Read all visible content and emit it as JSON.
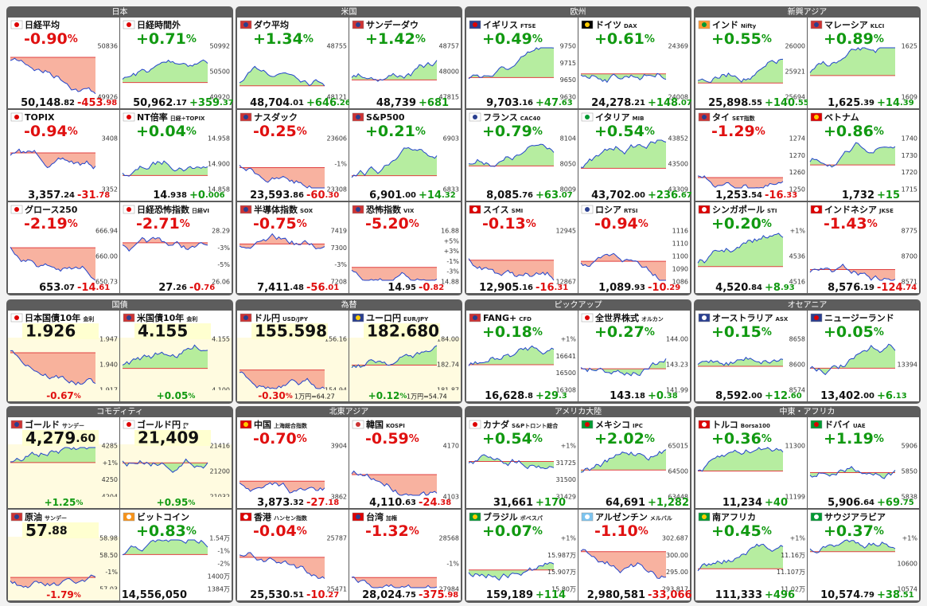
{
  "groups": [
    {
      "title": "日本",
      "tiles": [
        {
          "name": "日経平均",
          "pct": "-0.90%",
          "price": "50,148.82",
          "change": "-453.98",
          "labels": [
            "50836",
            "49926"
          ]
        },
        {
          "name": "日経時間外",
          "pct": "+0.71%",
          "price": "50,962.17",
          "change": "+359.37",
          "labels": [
            "50992",
            "50500",
            "49920"
          ]
        },
        {
          "name": "TOPIX",
          "pct": "-0.94%",
          "price": "3,357.24",
          "change": "-31.78",
          "labels": [
            "3408",
            "3352"
          ]
        },
        {
          "name": "NT倍率",
          "sub": "日経÷TOPIX",
          "pct": "+0.04%",
          "price": "14.938",
          "change": "+0.006",
          "labels": [
            "14.958",
            "14.900",
            "14.858"
          ]
        },
        {
          "name": "グロース250",
          "pct": "-2.19%",
          "price": "653.07",
          "change": "-14.61",
          "labels": [
            "666.94",
            "660.00",
            "650.73"
          ]
        },
        {
          "name": "日経恐怖指数",
          "sub": "日経VI",
          "pct": "-2.71%",
          "price": "27.26",
          "change": "-0.76",
          "labels": [
            "28.29",
            "-3%",
            "-5%",
            "26.06"
          ]
        }
      ]
    },
    {
      "title": "米国",
      "tiles": [
        {
          "name": "ダウ平均",
          "pct": "+1.34%",
          "price": "48,704.01",
          "change": "+646.26",
          "labels": [
            "48755",
            "48121"
          ]
        },
        {
          "name": "サンデーダウ",
          "pct": "+1.42%",
          "price": "48,739",
          "change": "+681",
          "labels": [
            "48757",
            "48000",
            "47815"
          ]
        },
        {
          "name": "ナスダック",
          "pct": "-0.25%",
          "price": "23,593.86",
          "change": "-60.30",
          "labels": [
            "23606",
            "-1%",
            "23308"
          ]
        },
        {
          "name": "S&P500",
          "pct": "+0.21%",
          "price": "6,901.00",
          "change": "+14.32",
          "labels": [
            "6903",
            "6833"
          ]
        },
        {
          "name": "半導体指数",
          "sub": "SOX",
          "pct": "-0.75%",
          "price": "7,411.48",
          "change": "-56.01",
          "labels": [
            "7419",
            "7300",
            "-3%",
            "7208"
          ]
        },
        {
          "name": "恐怖指数",
          "sub": "VIX",
          "pct": "-5.20%",
          "price": "14.95",
          "change": "-0.82",
          "labels": [
            "16.88",
            "+5%",
            "+3%",
            "-1%",
            "-3%",
            "14.88"
          ]
        }
      ]
    },
    {
      "title": "欧州",
      "tiles": [
        {
          "name": "イギリス",
          "sub": "FTSE",
          "pct": "+0.49%",
          "price": "9,703.16",
          "change": "+47.63",
          "labels": [
            "9750",
            "9715",
            "9650",
            "9630"
          ]
        },
        {
          "name": "ドイツ",
          "sub": "DAX",
          "pct": "+0.61%",
          "price": "24,278.21",
          "change": "+148.07",
          "labels": [
            "24369",
            "24008"
          ]
        },
        {
          "name": "フランス",
          "sub": "CAC40",
          "pct": "+0.79%",
          "price": "8,085.76",
          "change": "+63.07",
          "labels": [
            "8104",
            "8050",
            "8009"
          ]
        },
        {
          "name": "イタリア",
          "sub": "MIB",
          "pct": "+0.54%",
          "price": "43,702.00",
          "change": "+236.67",
          "labels": [
            "43852",
            "43500",
            "43309"
          ]
        },
        {
          "name": "スイス",
          "sub": "SMI",
          "pct": "-0.13%",
          "price": "12,905.16",
          "change": "-16.31",
          "labels": [
            "12945",
            "12867"
          ]
        },
        {
          "name": "ロシア",
          "sub": "RTSI",
          "pct": "-0.94%",
          "price": "1,089.93",
          "change": "-10.29",
          "labels": [
            "1116",
            "1110",
            "1100",
            "1090",
            "1086"
          ]
        }
      ]
    },
    {
      "title": "新興アジア",
      "tiles": [
        {
          "name": "インド",
          "sub": "Nifty",
          "pct": "+0.55%",
          "price": "25,898.55",
          "change": "+140.55",
          "labels": [
            "26000",
            "25921",
            "25694"
          ]
        },
        {
          "name": "マレーシア",
          "sub": "KLCI",
          "pct": "+0.89%",
          "price": "1,625.39",
          "change": "+14.39",
          "labels": [
            "1625",
            "1609"
          ]
        },
        {
          "name": "タイ",
          "sub": "SET指数",
          "pct": "-1.29%",
          "price": "1,253.54",
          "change": "-16.33",
          "labels": [
            "1274",
            "1270",
            "1260",
            "1250"
          ]
        },
        {
          "name": "ベトナム",
          "pct": "+0.86%",
          "price": "1,732",
          "change": "+15",
          "labels": [
            "1740",
            "1730",
            "1720",
            "1715"
          ]
        },
        {
          "name": "シンガポール",
          "sub": "STI",
          "pct": "+0.20%",
          "price": "4,520.84",
          "change": "+8.93",
          "labels": [
            "+1%",
            "4536",
            "4516"
          ]
        },
        {
          "name": "インドネシア",
          "sub": "JKSE",
          "pct": "-1.43%",
          "price": "8,576.19",
          "change": "-124.74",
          "labels": [
            "8775",
            "8700",
            "8571"
          ]
        }
      ]
    },
    {
      "title": "国債",
      "tiles": [
        {
          "name": "日本国債10年",
          "sub": "金利",
          "price": "1.926",
          "pct": "-0.67%",
          "labels": [
            "1.947",
            "1.940",
            "1.917"
          ]
        },
        {
          "name": "米国債10年",
          "sub": "金利",
          "price": "4.155",
          "pct": "+0.05%",
          "labels": [
            "4.155",
            "4.100"
          ]
        }
      ]
    },
    {
      "title": "為替",
      "tiles": [
        {
          "name": "ドル円",
          "sub": "USD/JPY",
          "price": "155.598",
          "pct": "-0.30%",
          "note": "1万円=64.27",
          "labels": [
            "156.16",
            "154.94"
          ]
        },
        {
          "name": "ユーロ円",
          "sub": "EUR/JPY",
          "price": "182.680",
          "pct": "+0.12%",
          "note": "1万円=54.74",
          "labels": [
            "184.00",
            "182.74",
            "181.87"
          ]
        }
      ]
    },
    {
      "title": "ピックアップ",
      "tiles": [
        {
          "name": "FANG+",
          "sub": "CFD",
          "pct": "+0.18%",
          "price": "16,628.8",
          "change": "+29.3",
          "labels": [
            "+1%",
            "16641",
            "16500",
            "16308"
          ]
        },
        {
          "name": "全世界株式",
          "sub": "オルカン",
          "pct": "+0.27%",
          "price": "143.18",
          "change": "+0.38",
          "labels": [
            "144.00",
            "143.23",
            "141.99"
          ]
        }
      ]
    },
    {
      "title": "オセアニア",
      "tiles": [
        {
          "name": "オーストラリア",
          "sub": "ASX",
          "pct": "+0.15%",
          "price": "8,592.00",
          "change": "+12.60",
          "labels": [
            "8658",
            "8600",
            "8574"
          ]
        },
        {
          "name": "ニュージーランド",
          "pct": "+0.05%",
          "price": "13,402.00",
          "change": "+6.13",
          "labels": [
            "13394"
          ]
        }
      ]
    },
    {
      "title": "コモディティ",
      "tiles": [
        {
          "name": "ゴールド",
          "sub": "サンデー",
          "price": "4,279.60",
          "pct": "+1.25%",
          "labels": [
            "4285",
            "+1%",
            "4250",
            "4204"
          ]
        },
        {
          "name": "ゴールド円",
          "sub": "㌘",
          "price": "21,409",
          "pct": "+0.95%",
          "labels": [
            "21416",
            "21200",
            "21032"
          ]
        },
        {
          "name": "原油",
          "sub": "サンデー",
          "price": "57.88",
          "pct": "-1.79%",
          "labels": [
            "58.98",
            "58.50",
            "-1%",
            "57.03"
          ]
        },
        {
          "name": "ビットコイン",
          "pct": "+0.83%",
          "price": "14,556,050",
          "change": "",
          "labels": [
            "1.54万",
            "-1%",
            "-2%",
            "1400万",
            "1384万"
          ]
        }
      ]
    },
    {
      "title": "北東アジア",
      "tiles": [
        {
          "name": "中国",
          "sub": "上海総合指数",
          "pct": "-0.70%",
          "price": "3,873.32",
          "change": "-27.18",
          "labels": [
            "3904",
            "3862"
          ]
        },
        {
          "name": "韓国",
          "sub": "KOSPI",
          "pct": "-0.59%",
          "price": "4,110.63",
          "change": "-24.38",
          "labels": [
            "4170",
            "4103"
          ]
        },
        {
          "name": "香港",
          "sub": "ハンセン指数",
          "pct": "-0.04%",
          "price": "25,530.51",
          "change": "-10.27",
          "labels": [
            "25787",
            "25471"
          ]
        },
        {
          "name": "台湾",
          "sub": "加権",
          "pct": "-1.32%",
          "price": "28,024.75",
          "change": "-375.98",
          "labels": [
            "28568",
            "-1%",
            "27984"
          ]
        }
      ]
    },
    {
      "title": "アメリカ大陸",
      "tiles": [
        {
          "name": "カナダ",
          "sub": "S&Pトロント総合",
          "pct": "+0.54%",
          "price": "31,661",
          "change": "+170",
          "labels": [
            "+1%",
            "31725",
            "31500",
            "31429"
          ]
        },
        {
          "name": "メキシコ",
          "sub": "IPC",
          "pct": "+2.02%",
          "price": "64,691",
          "change": "+1,282",
          "labels": [
            "65015",
            "64500",
            "63448"
          ]
        },
        {
          "name": "ブラジル",
          "sub": "ボベスパ",
          "pct": "+0.07%",
          "price": "159,189",
          "change": "+114",
          "labels": [
            "+1%",
            "15.987万",
            "15.907万",
            "15.80万"
          ]
        },
        {
          "name": "アルゼンチン",
          "sub": "メルバル",
          "pct": "-1.10%",
          "price": "2,980,581",
          "change": "-33,066",
          "labels": [
            "302.687",
            "300.00",
            "295.00",
            "293.817"
          ]
        }
      ]
    },
    {
      "title": "中東・アフリカ",
      "tiles": [
        {
          "name": "トルコ",
          "sub": "Borsa100",
          "pct": "+0.36%",
          "price": "11,234",
          "change": "+40",
          "labels": [
            "11300",
            "11199"
          ]
        },
        {
          "name": "ドバイ",
          "sub": "UAE",
          "pct": "+1.19%",
          "price": "5,906.64",
          "change": "+69.75",
          "labels": [
            "5906",
            "5850",
            "5838"
          ]
        },
        {
          "name": "南アフリカ",
          "pct": "+0.45%",
          "price": "111,333",
          "change": "+496",
          "labels": [
            "+1%",
            "11.16万",
            "11.107万",
            "11.02万"
          ]
        },
        {
          "name": "サウジアラビア",
          "pct": "+0.37%",
          "price": "10,574.79",
          "change": "+38.51",
          "labels": [
            "+1%",
            "10600",
            "10574"
          ]
        }
      ]
    }
  ]
}
